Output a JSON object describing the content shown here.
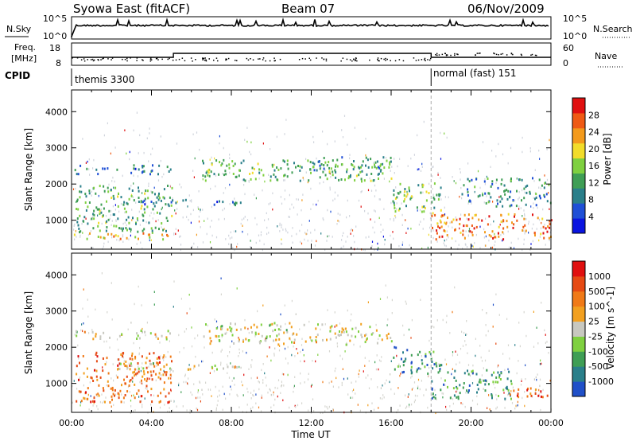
{
  "header": {
    "station": "Syowa East (fitACF)",
    "beam": "Beam 07",
    "date": "06/Nov/2009"
  },
  "noise_panel": {
    "left_label": "N.Sky",
    "right_label": "N.Search",
    "left_ticks": [
      "10^5",
      "10^0"
    ],
    "right_ticks": [
      "10^5",
      "10^0"
    ]
  },
  "freq_panel": {
    "left_label_1": "Freq.",
    "left_label_2": "[MHz]",
    "left_ticks": [
      "18",
      "8"
    ],
    "right_label": "Nave",
    "right_ticks": [
      "60",
      "0"
    ]
  },
  "cpid_panel": {
    "label": "CPID",
    "modes": [
      {
        "name": "themis 3300",
        "start_hour": 0,
        "end_hour": 18
      },
      {
        "name": "normal (fast) 151",
        "start_hour": 18,
        "end_hour": 24
      }
    ]
  },
  "chart_data": [
    {
      "type": "heatmap",
      "title": "",
      "ylabel": "Slant Range [km]",
      "xlabel": "",
      "ylim": [
        200,
        4600
      ],
      "xlim": [
        0,
        24
      ],
      "yticks": [
        1000,
        2000,
        3000,
        4000
      ],
      "colorbar": {
        "label": "Power [dB]",
        "ticks": [
          4,
          8,
          12,
          16,
          20,
          24,
          28
        ],
        "range": [
          0,
          32
        ],
        "colors": [
          "#0a14e0",
          "#1f4fd6",
          "#2a7f8a",
          "#3f9e55",
          "#7fd040",
          "#f2dc2a",
          "#f39a1c",
          "#ef5a14",
          "#e01010"
        ]
      },
      "echo_bands": [
        {
          "t0": 0.1,
          "t1": 5.0,
          "r0": 2300,
          "r1": 2550,
          "level": 0.25
        },
        {
          "t0": 0.1,
          "t1": 5.0,
          "r0": 500,
          "r1": 700,
          "level": 0.65
        },
        {
          "t0": 0.2,
          "t1": 5.0,
          "r0": 700,
          "r1": 2000,
          "level": 0.4
        },
        {
          "t0": 2.0,
          "t1": 8.5,
          "r0": 1450,
          "r1": 1600,
          "level": 0.25
        },
        {
          "t0": 6.5,
          "t1": 16.0,
          "r0": 2100,
          "r1": 2700,
          "level": 0.4
        },
        {
          "t0": 12.0,
          "t1": 16.0,
          "r0": 2350,
          "r1": 2800,
          "level": 0.35
        },
        {
          "t0": 16.0,
          "t1": 18.5,
          "r0": 1200,
          "r1": 2100,
          "level": 0.45
        },
        {
          "t0": 18.0,
          "t1": 24.0,
          "r0": 500,
          "r1": 1200,
          "level": 0.8
        },
        {
          "t0": 19.5,
          "t1": 24.0,
          "r0": 1400,
          "r1": 2200,
          "level": 0.3
        }
      ]
    },
    {
      "type": "heatmap",
      "title": "",
      "ylabel": "Slant Range [km]",
      "xlabel": "Time UT",
      "ylim": [
        200,
        4600
      ],
      "xlim": [
        0,
        24
      ],
      "xticks": [
        "00:00",
        "04:00",
        "08:00",
        "12:00",
        "16:00",
        "20:00",
        "00:00"
      ],
      "yticks": [
        1000,
        2000,
        3000,
        4000
      ],
      "colorbar": {
        "label": "Velocity [m s^-1]",
        "ticks": [
          "1000",
          "500",
          "100",
          "25",
          "-25",
          "-100",
          "-500",
          "-1000"
        ],
        "colors": [
          "#2050c8",
          "#2a7f8a",
          "#3f9e55",
          "#7fd040",
          "#c8c8c0",
          "#f2a020",
          "#f07a18",
          "#e64a14",
          "#e01010"
        ]
      },
      "echo_bands": [
        {
          "t0": 0.1,
          "t1": 5.0,
          "r0": 2250,
          "r1": 2500,
          "level": 0.5
        },
        {
          "t0": 0.2,
          "t1": 5.0,
          "r0": 500,
          "r1": 1900,
          "level": 0.75
        },
        {
          "t0": 2.0,
          "t1": 8.5,
          "r0": 1400,
          "r1": 1600,
          "level": 0.5
        },
        {
          "t0": 6.5,
          "t1": 16.0,
          "r0": 2100,
          "r1": 2700,
          "level": 0.5
        },
        {
          "t0": 16.0,
          "t1": 18.5,
          "r0": 1300,
          "r1": 2100,
          "level": 0.2
        },
        {
          "t0": 18.0,
          "t1": 22.0,
          "r0": 600,
          "r1": 1400,
          "level": 0.25
        },
        {
          "t0": 21.5,
          "t1": 24.0,
          "r0": 600,
          "r1": 900,
          "level": 0.8
        }
      ]
    }
  ]
}
